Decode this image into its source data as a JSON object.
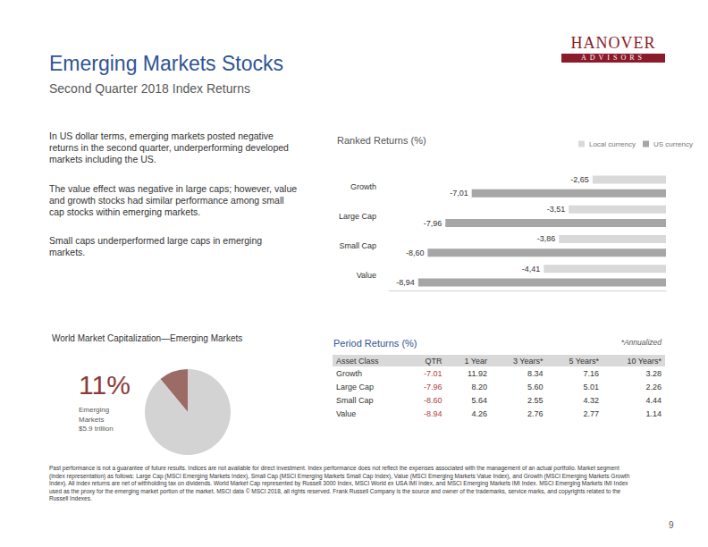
{
  "header": {
    "title": "Emerging Markets Stocks",
    "subtitle": "Second Quarter 2018 Index Returns",
    "logo": {
      "name": "HANOVER",
      "tagline": "ADVISORS"
    }
  },
  "text": [
    "In US dollar terms, emerging markets posted negative returns in the second quarter, underperforming developed markets including the US.",
    "The value effect was negative in large caps; however, value and growth stocks had similar performance among small cap stocks within emerging markets.",
    "Small caps underperformed large caps in emerging markets."
  ],
  "chart_data": [
    {
      "type": "bar",
      "title": "Ranked Returns (%)",
      "orientation": "horizontal",
      "categories": [
        "Growth",
        "Large Cap",
        "Small Cap",
        "Value"
      ],
      "series": [
        {
          "name": "Local currency",
          "color": "#d9d9d9",
          "values": [
            -2.65,
            -3.51,
            -3.86,
            -4.41
          ],
          "value_labels": [
            "-2,65",
            "-3,51",
            "-3,86",
            "-4,41"
          ]
        },
        {
          "name": "US currency",
          "color": "#a6a6a6",
          "values": [
            -7.01,
            -7.96,
            -8.6,
            -8.94
          ],
          "value_labels": [
            "-7,01",
            "-7,96",
            "-8,60",
            "-8,94"
          ]
        }
      ],
      "xlim": [
        -10,
        0
      ],
      "data_labels": true,
      "tick_labels": "y",
      "legend": "top right",
      "grid": false
    },
    {
      "type": "pie",
      "title": "World Market Capitalization—Emerging Markets",
      "values": [
        11,
        89
      ],
      "colors": [
        "#9c6b66",
        "#d3d3d3"
      ],
      "annotations": [
        "11%",
        "Emerging",
        "Markets",
        "$5.9 trillion"
      ]
    }
  ],
  "table": {
    "title": "Period Returns (%)",
    "note": "*Annualized",
    "columns": [
      "Asset Class",
      "QTR",
      "1 Year",
      "3 Years*",
      "5 Years*",
      "10 Years*"
    ],
    "rows": [
      [
        "Growth",
        "-7.01",
        "11.92",
        "8.34",
        "7.16",
        "3.28"
      ],
      [
        "Large Cap",
        "-7.96",
        "8.20",
        "5.60",
        "5.01",
        "2.26"
      ],
      [
        "Small Cap",
        "-8.60",
        "5.64",
        "2.55",
        "4.32",
        "4.44"
      ],
      [
        "Value",
        "-8.94",
        "4.26",
        "2.76",
        "2.77",
        "1.14"
      ]
    ]
  },
  "footer": "Past performance is not a guarantee of future results. Indices are not available for direct investment. Index performance does not reflect the expenses associated with the management of an actual portfolio. Market segment (index representation) as follows: Large Cap (MSCI Emerging Markets Index), Small Cap (MSCI Emerging Markets Small Cap Index), Value (MSCI Emerging Markets Value Index), and Growth (MSCI Emerging Markets Growth Index). All index returns are net of withholding tax on dividends. World Market Cap represented by Russell 3000 Index, MSCI World ex USA IMI Index, and MSCI Emerging Markets IMI Index. MSCI Emerging Markets IMI Index used as the proxy for the emerging market portion of the market. MSCI data © MSCI 2018, all rights reserved. Frank Russell Company is the source and owner of the trademarks, service marks, and copyrights related to the Russell Indexes.",
  "page_number": "9"
}
